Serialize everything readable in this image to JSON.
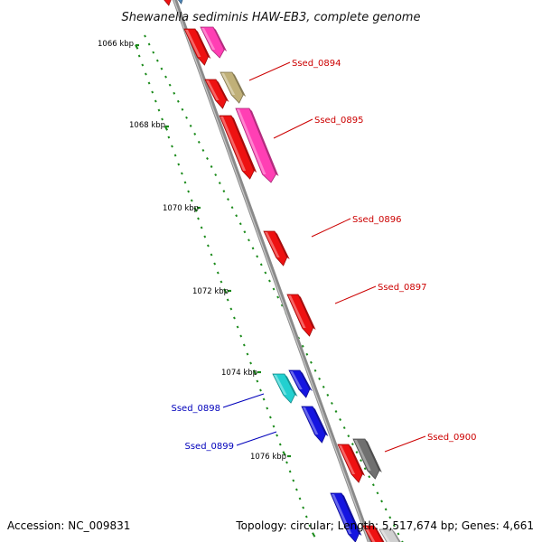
{
  "title": "Shewanella sediminis HAW-EB3, complete genome",
  "footer": {
    "accession": "Accession: NC_009831",
    "summary": "Topology: circular; Length: 5,517,674 bp; Genes: 4,661"
  },
  "colors": {
    "red": "#ee1111",
    "pink": "#ff3fb4",
    "olive": "#c0b078",
    "cyan": "#22d0d0",
    "blue": "#1515e0",
    "gray": "#707070",
    "steel": "#4d88bb",
    "tick": "#1a8a1a",
    "red_label": "#cc0000",
    "blue_label": "#0000bb"
  },
  "kbp_labels": [
    "1066 kbp",
    "1068 kbp",
    "1070 kbp",
    "1072 kbp",
    "1074 kbp",
    "1076 kbp"
  ],
  "gene_labels": [
    {
      "name": "Ssed_0894",
      "color": "red_label"
    },
    {
      "name": "Ssed_0895",
      "color": "red_label"
    },
    {
      "name": "Ssed_0896",
      "color": "red_label"
    },
    {
      "name": "Ssed_0897",
      "color": "red_label"
    },
    {
      "name": "Ssed_0898",
      "color": "blue_label"
    },
    {
      "name": "Ssed_0899",
      "color": "blue_label"
    },
    {
      "name": "Ssed_0900",
      "color": "red_label"
    }
  ]
}
